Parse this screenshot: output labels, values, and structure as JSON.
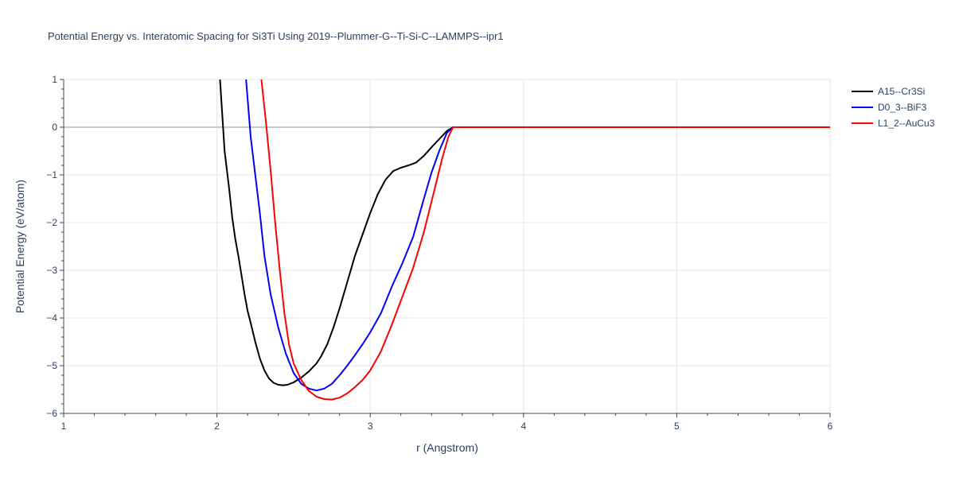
{
  "chart_data": {
    "type": "line",
    "title": "Potential Energy vs. Interatomic Spacing for Si3Ti Using 2019--Plummer-G--Ti-Si-C--LAMMPS--ipr1",
    "xlabel": "r (Angstrom)",
    "ylabel": "Potential Energy (eV/atom)",
    "xlim": [
      1,
      6
    ],
    "ylim": [
      -6,
      1
    ],
    "xticks": [
      1,
      2,
      3,
      4,
      5,
      6
    ],
    "xtick_labels": [
      "1",
      "2",
      "3",
      "4",
      "5",
      "6"
    ],
    "yticks": [
      -6,
      -5,
      -4,
      -3,
      -2,
      -1,
      0,
      1
    ],
    "ytick_labels": [
      "−6",
      "−5",
      "−4",
      "−3",
      "−2",
      "−1",
      "0",
      "1"
    ],
    "grid": true,
    "legend_position": "top-right",
    "series": [
      {
        "name": "A15--Cr3Si",
        "color": "#000000",
        "x": [
          2.02,
          2.05,
          2.08,
          2.1,
          2.12,
          2.14,
          2.16,
          2.18,
          2.2,
          2.22,
          2.25,
          2.28,
          2.31,
          2.34,
          2.37,
          2.4,
          2.43,
          2.46,
          2.5,
          2.55,
          2.6,
          2.65,
          2.68,
          2.72,
          2.76,
          2.8,
          2.85,
          2.9,
          2.95,
          3.0,
          3.05,
          3.1,
          3.15,
          3.2,
          3.25,
          3.3,
          3.35,
          3.4,
          3.45,
          3.5,
          3.54,
          3.6,
          4.0,
          4.5,
          5.0,
          5.5,
          6.0
        ],
        "y": [
          1.0,
          -0.5,
          -1.3,
          -1.9,
          -2.35,
          -2.7,
          -3.1,
          -3.5,
          -3.85,
          -4.1,
          -4.5,
          -4.85,
          -5.1,
          -5.27,
          -5.36,
          -5.4,
          -5.41,
          -5.4,
          -5.35,
          -5.25,
          -5.12,
          -4.95,
          -4.8,
          -4.55,
          -4.2,
          -3.8,
          -3.25,
          -2.7,
          -2.25,
          -1.8,
          -1.4,
          -1.1,
          -0.92,
          -0.85,
          -0.8,
          -0.74,
          -0.6,
          -0.42,
          -0.25,
          -0.08,
          0.0,
          0.0,
          0.0,
          0.0,
          0.0,
          0.0,
          0.0
        ]
      },
      {
        "name": "D0_3--BiF3",
        "color": "#0000ff",
        "x": [
          2.19,
          2.22,
          2.25,
          2.28,
          2.31,
          2.35,
          2.4,
          2.45,
          2.5,
          2.55,
          2.6,
          2.65,
          2.7,
          2.75,
          2.8,
          2.85,
          2.9,
          2.95,
          3.0,
          3.07,
          3.14,
          3.21,
          3.28,
          3.35,
          3.4,
          3.45,
          3.5,
          3.54,
          3.6,
          4.0,
          4.5,
          5.0,
          5.5,
          6.0
        ],
        "y": [
          1.0,
          -0.2,
          -1.0,
          -1.8,
          -2.7,
          -3.5,
          -4.2,
          -4.75,
          -5.15,
          -5.38,
          -5.48,
          -5.52,
          -5.48,
          -5.38,
          -5.2,
          -5.0,
          -4.78,
          -4.55,
          -4.3,
          -3.9,
          -3.35,
          -2.85,
          -2.3,
          -1.5,
          -0.95,
          -0.5,
          -0.12,
          0.0,
          0.0,
          0.0,
          0.0,
          0.0,
          0.0,
          0.0
        ]
      },
      {
        "name": "L1_2--AuCu3",
        "color": "#ff0000",
        "x": [
          2.29,
          2.32,
          2.35,
          2.38,
          2.41,
          2.44,
          2.47,
          2.5,
          2.55,
          2.6,
          2.65,
          2.7,
          2.75,
          2.8,
          2.85,
          2.9,
          2.95,
          3.0,
          3.07,
          3.14,
          3.21,
          3.28,
          3.35,
          3.42,
          3.47,
          3.51,
          3.54,
          3.6,
          4.0,
          4.5,
          5.0,
          5.5,
          6.0
        ],
        "y": [
          1.0,
          0.1,
          -0.9,
          -2.0,
          -3.0,
          -3.9,
          -4.55,
          -4.95,
          -5.3,
          -5.53,
          -5.65,
          -5.7,
          -5.71,
          -5.67,
          -5.58,
          -5.45,
          -5.3,
          -5.1,
          -4.7,
          -4.15,
          -3.55,
          -2.95,
          -2.2,
          -1.3,
          -0.65,
          -0.2,
          0.0,
          0.0,
          0.0,
          0.0,
          0.0,
          0.0,
          0.0
        ]
      }
    ]
  }
}
